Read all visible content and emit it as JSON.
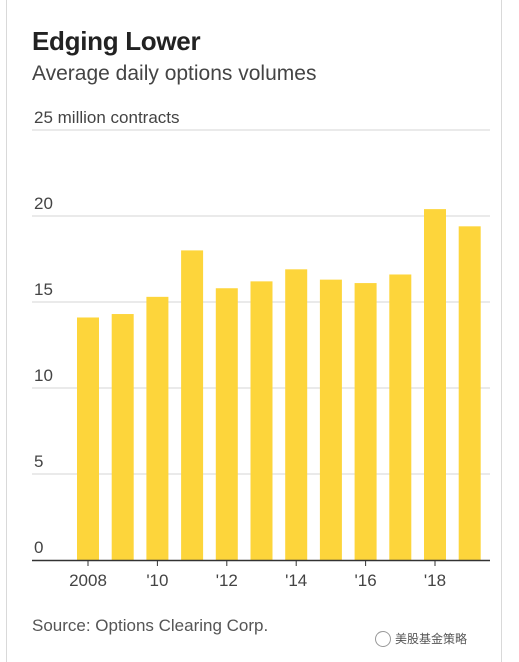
{
  "header": {
    "title": "Edging Lower",
    "subtitle": "Average daily options volumes"
  },
  "footer": {
    "source": "Source: Options Clearing Corp.",
    "watermark": "美股基金策略"
  },
  "colors": {
    "bar": "#fdd53b",
    "grid": "#d6d6d6",
    "axis": "#333333",
    "text": "#444444"
  },
  "chart_data": {
    "type": "bar",
    "title": "Edging Lower",
    "subtitle": "Average daily options volumes",
    "xlabel": "",
    "ylabel": "",
    "unit_label": "25 million contracts",
    "categories": [
      "2008",
      "2009",
      "2010",
      "2011",
      "2012",
      "2013",
      "2014",
      "2015",
      "2016",
      "2017",
      "2018",
      "2019"
    ],
    "values": [
      14.1,
      14.3,
      15.3,
      18.0,
      15.8,
      16.2,
      16.9,
      16.3,
      16.1,
      16.6,
      20.4,
      19.4
    ],
    "ylim": [
      0,
      25
    ],
    "y_ticks": [
      {
        "value": 0,
        "label": "0"
      },
      {
        "value": 5,
        "label": "5"
      },
      {
        "value": 10,
        "label": "10"
      },
      {
        "value": 15,
        "label": "15"
      },
      {
        "value": 20,
        "label": "20"
      },
      {
        "value": 25,
        "label": "25 million contracts"
      }
    ],
    "x_ticks": [
      {
        "index": 0,
        "label": "2008"
      },
      {
        "index": 2,
        "label": "'10"
      },
      {
        "index": 4,
        "label": "'12"
      },
      {
        "index": 6,
        "label": "'14"
      },
      {
        "index": 8,
        "label": "'16"
      },
      {
        "index": 10,
        "label": "'18"
      }
    ],
    "grid": true,
    "legend": "none"
  }
}
